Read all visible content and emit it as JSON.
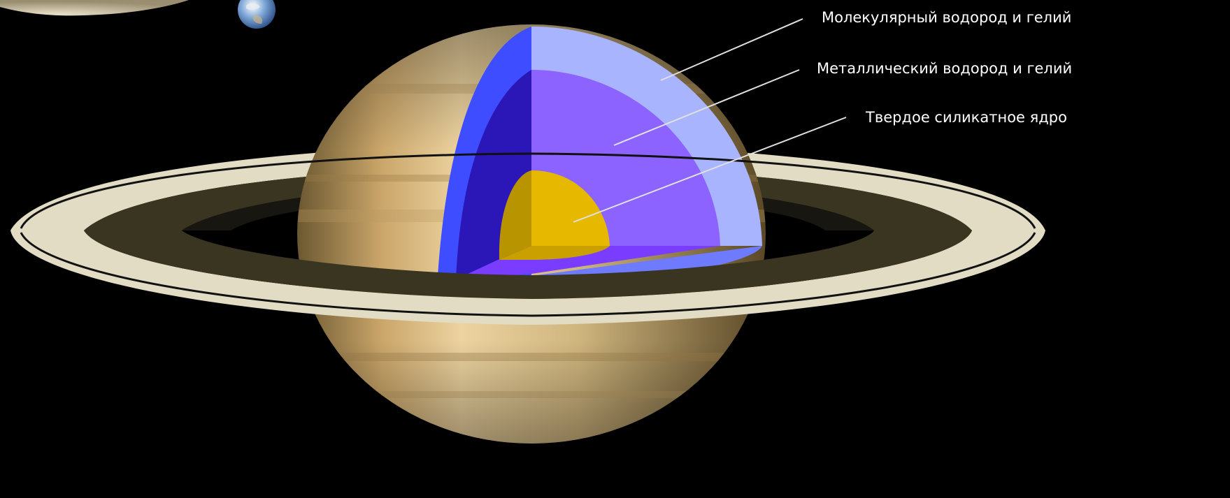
{
  "diagram": {
    "background": "#000000",
    "layers": [
      {
        "key": "molecular",
        "label": "Молекулярный водород и гелий",
        "color": "#a9b4ff"
      },
      {
        "key": "metallic",
        "label": "Металлический водород и гелий",
        "color": "#8c63ff"
      },
      {
        "key": "core",
        "label": "Твердое силикатное ядро",
        "color": "#e6b800"
      }
    ],
    "planet_colors": {
      "body_light": "#f2d39a",
      "body_dark": "#5a4826",
      "ring_light": "#e2dcc4",
      "ring_dark": "#3a3520",
      "cut_side_blue": "#3d4dff",
      "cut_floor": "#6e7bff"
    },
    "icons": [
      "earth-icon"
    ]
  }
}
